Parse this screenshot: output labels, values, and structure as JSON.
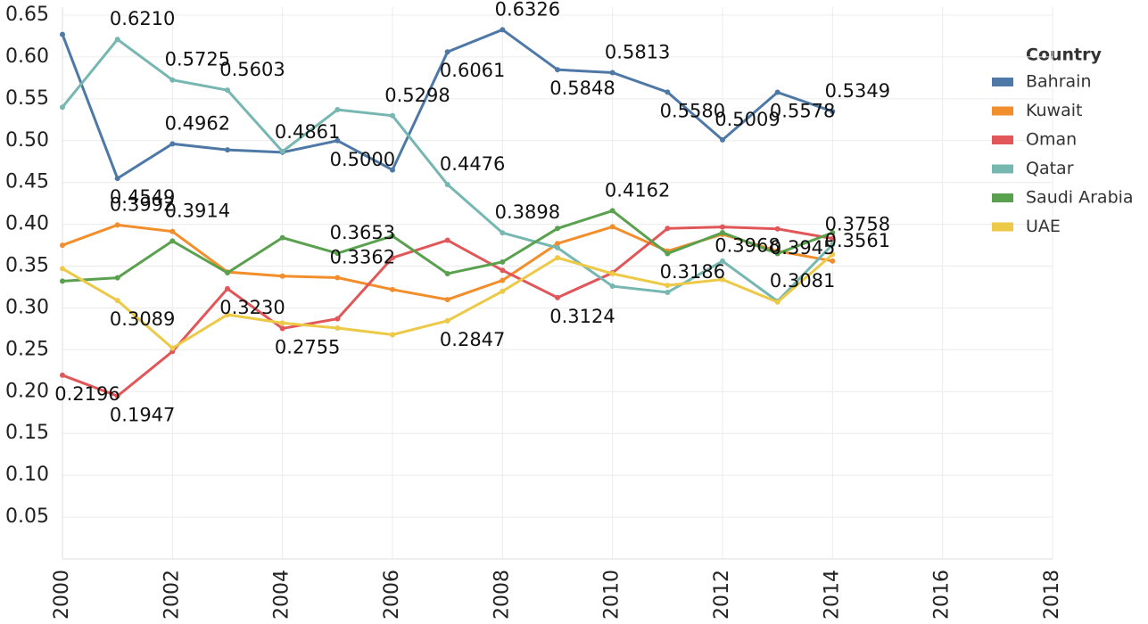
{
  "chart_data": {
    "type": "line",
    "x": [
      2000,
      2001,
      2002,
      2003,
      2004,
      2005,
      2006,
      2007,
      2008,
      2009,
      2010,
      2011,
      2012,
      2013,
      2014
    ],
    "xlim": [
      2000,
      2018
    ],
    "xticks": [
      2000,
      2002,
      2004,
      2006,
      2008,
      2010,
      2012,
      2014,
      2016,
      2018
    ],
    "ylim": [
      0,
      0.65
    ],
    "yticks": [
      0.05,
      {
        "value": 0.1,
        "label": "0.10"
      },
      0.15,
      {
        "value": 0.2,
        "label": "0.20"
      },
      0.25,
      {
        "value": 0.3,
        "label": "0.30"
      },
      0.35,
      {
        "value": 0.4,
        "label": "0.40"
      },
      0.45,
      {
        "value": 0.5,
        "label": "0.50"
      },
      0.55,
      {
        "value": 0.6,
        "label": "0.60"
      },
      0.65
    ],
    "grid": true,
    "legend_title": "Country",
    "legend": "right",
    "series": [
      {
        "name": "Bahrain",
        "color": "#4e79a7",
        "values": [
          0.627,
          0.4549,
          0.4962,
          0.489,
          0.4861,
          0.5,
          0.465,
          0.6061,
          0.6326,
          0.5848,
          0.5813,
          0.558,
          0.5009,
          0.5578,
          0.5349
        ],
        "value_labels": [
          null,
          "0.4549",
          "0.4962",
          null,
          "0.4861",
          "0.5000",
          null,
          "0.6061",
          "0.6326",
          "0.5848",
          "0.5813",
          "0.5580",
          "0.5009",
          "0.5578",
          "0.5349"
        ]
      },
      {
        "name": "Kuwait",
        "color": "#f28e2b",
        "values": [
          0.375,
          0.3992,
          0.3914,
          0.343,
          0.338,
          0.3362,
          0.322,
          0.31,
          0.333,
          0.377,
          0.397,
          0.368,
          0.388,
          0.368,
          0.3561
        ],
        "value_labels": [
          null,
          "0.3992",
          "0.3914",
          null,
          null,
          "0.3362",
          null,
          null,
          null,
          null,
          null,
          null,
          null,
          null,
          "0.3561"
        ]
      },
      {
        "name": "Oman",
        "color": "#e15759",
        "values": [
          0.2196,
          0.1947,
          0.248,
          0.323,
          0.2755,
          0.287,
          0.36,
          0.381,
          0.345,
          0.3124,
          0.342,
          0.395,
          0.3968,
          0.3945,
          0.383
        ],
        "value_labels": [
          "0.2196",
          "0.1947",
          null,
          "0.3230",
          "0.2755",
          null,
          null,
          null,
          null,
          "0.3124",
          null,
          null,
          "0.3968",
          "0.3945",
          null
        ]
      },
      {
        "name": "Qatar",
        "color": "#76b7b2",
        "values": [
          0.54,
          0.621,
          0.5725,
          0.5603,
          0.487,
          0.537,
          0.5298,
          0.4476,
          0.3898,
          0.372,
          0.326,
          0.3186,
          0.356,
          0.3081,
          0.3758
        ],
        "value_labels": [
          null,
          "0.6210",
          "0.5725",
          "0.5603",
          null,
          null,
          "0.5298",
          "0.4476",
          "0.3898",
          null,
          null,
          "0.3186",
          null,
          "0.3081",
          "0.3758"
        ]
      },
      {
        "name": "Saudi Arabia",
        "color": "#59a14f",
        "values": [
          0.332,
          0.336,
          0.38,
          0.342,
          0.384,
          0.3653,
          0.386,
          0.341,
          0.355,
          0.395,
          0.4162,
          0.365,
          0.39,
          0.365,
          0.39
        ],
        "value_labels": [
          null,
          null,
          null,
          null,
          null,
          "0.3653",
          null,
          null,
          null,
          null,
          "0.4162",
          null,
          null,
          null,
          null
        ]
      },
      {
        "name": "UAE",
        "color": "#edc948",
        "values": [
          0.347,
          0.3089,
          0.252,
          0.292,
          0.282,
          0.276,
          0.268,
          0.2847,
          0.32,
          0.36,
          0.341,
          0.327,
          0.334,
          0.307,
          0.364
        ],
        "value_labels": [
          null,
          "0.3089",
          null,
          null,
          null,
          null,
          null,
          "0.2847",
          null,
          null,
          null,
          null,
          null,
          null,
          null
        ]
      }
    ]
  }
}
